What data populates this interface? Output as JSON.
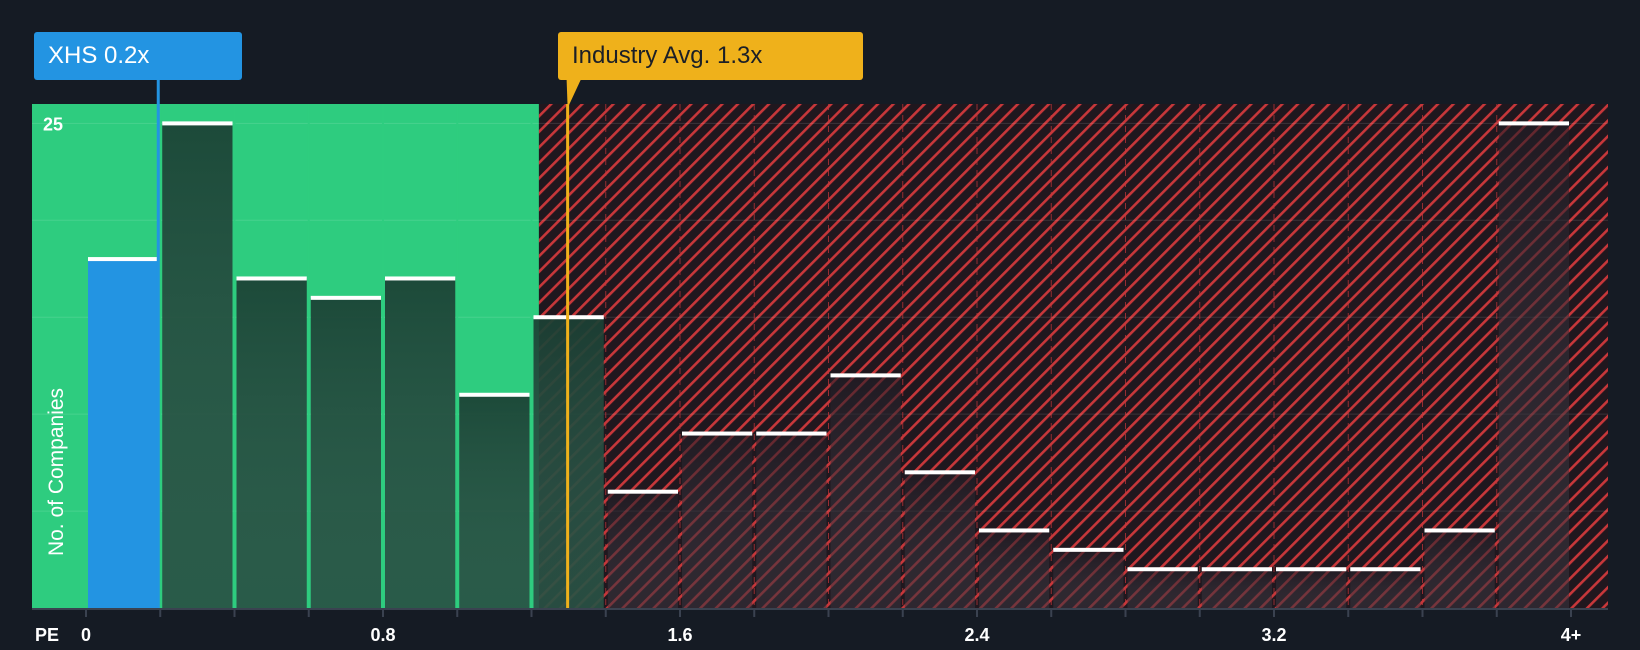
{
  "chart_data": {
    "type": "bar",
    "title": "",
    "xlabel": "PE",
    "ylabel": "No. of Companies",
    "y_tick_label": "25",
    "ylim": [
      0,
      26
    ],
    "y_gridlines": [
      5,
      10,
      15,
      20,
      25
    ],
    "bin_edges": [
      0,
      0.2,
      0.4,
      0.6,
      0.8,
      1.0,
      1.2,
      1.4,
      1.6,
      1.8,
      2.0,
      2.2,
      2.4,
      2.6,
      2.8,
      3.0,
      3.2,
      3.4,
      3.6,
      3.8,
      4.0
    ],
    "x_ticks": [
      {
        "value": 0,
        "label": "0"
      },
      {
        "value": 0.8,
        "label": "0.8"
      },
      {
        "value": 1.6,
        "label": "1.6"
      },
      {
        "value": 2.4,
        "label": "2.4"
      },
      {
        "value": 3.2,
        "label": "3.2"
      },
      {
        "value": 4.0,
        "label": "4+"
      }
    ],
    "values": [
      18,
      25,
      17,
      16,
      17,
      11,
      15,
      6,
      9,
      9,
      12,
      7,
      4,
      3,
      2,
      2,
      2,
      2,
      4,
      25
    ],
    "company": {
      "name": "XHS",
      "pe": 0.2,
      "label": "XHS 0.2x",
      "bin_index": 0
    },
    "industry_avg": {
      "pe": 1.3,
      "label": "Industry Avg. 1.3x"
    },
    "fair_range_upper": 1.22,
    "colors": {
      "background": "#151b24",
      "fair_zone": "#2ecc7f",
      "company_bar": "#2394e2",
      "bar_in_fair": "#1f4a3c",
      "bar_over": "#2a2530",
      "hatch": "#c7373a",
      "industry": "#efb11b",
      "bar_cap": "#ffffff"
    }
  }
}
